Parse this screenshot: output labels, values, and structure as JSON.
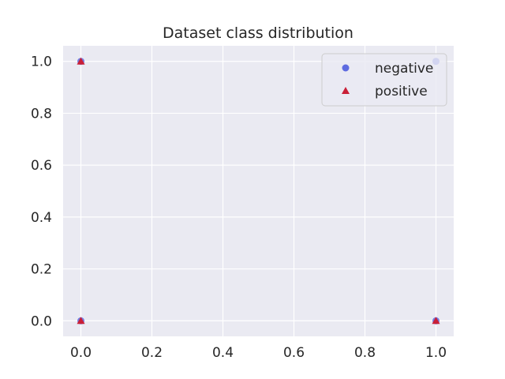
{
  "chart_data": {
    "type": "scatter",
    "title": "Dataset class distribution",
    "xlabel": "",
    "ylabel": "",
    "xlim": [
      -0.05,
      1.05
    ],
    "ylim": [
      -0.06,
      1.06
    ],
    "xticks": [
      0.0,
      0.2,
      0.4,
      0.6,
      0.8,
      1.0
    ],
    "yticks": [
      0.0,
      0.2,
      0.4,
      0.6,
      0.8,
      1.0
    ],
    "xtick_labels": [
      "0.0",
      "0.2",
      "0.4",
      "0.6",
      "0.8",
      "1.0"
    ],
    "ytick_labels": [
      "0.0",
      "0.2",
      "0.4",
      "0.6",
      "0.8",
      "1.0"
    ],
    "grid": true,
    "legend_position": "top-right",
    "series": [
      {
        "name": "negative",
        "marker": "circle",
        "color": "#5e6be0",
        "x": [
          0,
          1,
          0,
          1
        ],
        "y": [
          0,
          0,
          1,
          1
        ]
      },
      {
        "name": "positive",
        "marker": "triangle",
        "color": "#c91f37",
        "x": [
          0,
          1,
          0
        ],
        "y": [
          0,
          0,
          1
        ]
      }
    ]
  }
}
